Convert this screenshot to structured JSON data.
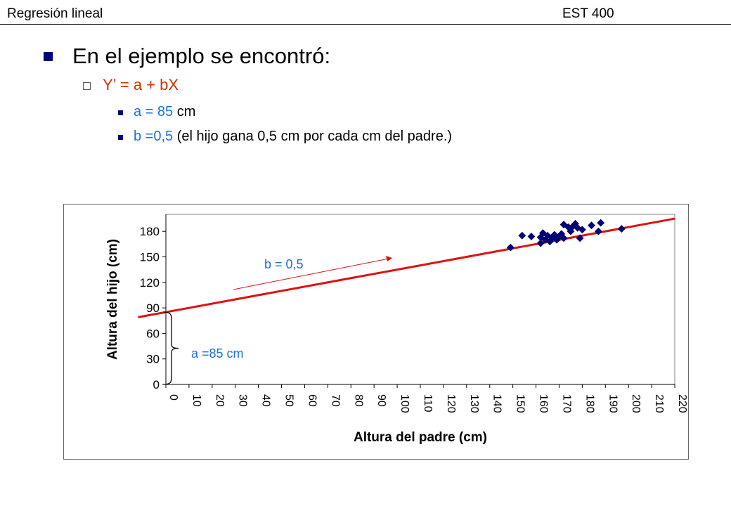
{
  "header": {
    "left": "Regresión lineal",
    "right": "EST 400"
  },
  "bullets": {
    "l1": "En el ejemplo se encontró:",
    "l2_eq": "Y’ = a + bX",
    "l3a_blue": "a = 85",
    "l3a_rest": " cm",
    "l3b_blue": "b =0,5",
    "l3b_rest": " (el hijo gana 0,5 cm por cada cm del padre.)"
  },
  "chart_data": {
    "type": "scatter",
    "xlabel": "Altura del padre (cm)",
    "ylabel": "Altura del hijo (cm)",
    "xlim": [
      0,
      220
    ],
    "ylim": [
      0,
      200
    ],
    "x_ticks": [
      0,
      10,
      20,
      30,
      40,
      50,
      60,
      70,
      80,
      90,
      100,
      110,
      120,
      130,
      140,
      150,
      160,
      170,
      180,
      190,
      200,
      210,
      220
    ],
    "y_ticks": [
      0,
      30,
      60,
      90,
      120,
      150,
      180
    ],
    "points": [
      [
        149,
        161
      ],
      [
        154,
        175
      ],
      [
        158,
        174
      ],
      [
        162,
        166
      ],
      [
        162,
        173
      ],
      [
        163,
        178
      ],
      [
        164,
        170
      ],
      [
        165,
        175
      ],
      [
        166,
        168
      ],
      [
        167,
        172
      ],
      [
        168,
        176
      ],
      [
        169,
        170
      ],
      [
        170,
        174
      ],
      [
        171,
        177
      ],
      [
        172,
        188
      ],
      [
        172,
        172
      ],
      [
        174,
        185
      ],
      [
        175,
        180
      ],
      [
        176,
        186
      ],
      [
        177,
        189
      ],
      [
        178,
        184
      ],
      [
        179,
        172
      ],
      [
        180,
        182
      ],
      [
        184,
        187
      ],
      [
        187,
        180
      ],
      [
        188,
        190
      ],
      [
        197,
        183
      ]
    ],
    "series_color": "#000080",
    "regression": {
      "a": 85,
      "b": 0.5,
      "color": "#e01010",
      "range": [
        -12,
        220
      ]
    },
    "annotations": {
      "slope": "b = 0,5",
      "intercept": "a =85 cm",
      "color": "#1a6fd6",
      "arrow_color": "#e01010"
    }
  }
}
